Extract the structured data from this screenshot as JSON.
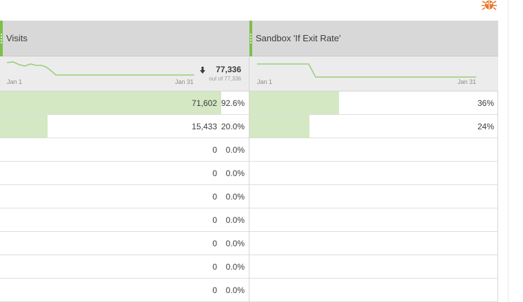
{
  "colors": {
    "accent": "#7cbf4a",
    "bar": "#d3e8c3",
    "header": "#d8d8d8",
    "summary": "#ececec",
    "bug": "#e8772e"
  },
  "icons": {
    "top_right": "bug-icon",
    "total": "down-arrow-icon"
  },
  "columns": [
    {
      "title": "Visits",
      "trend_start": "Jan 1",
      "trend_end": "Jan 31",
      "total": "77,336",
      "total_sub": "out of 77,336"
    },
    {
      "title": "Sandbox 'If Exit Rate'",
      "trend_start": "Jan 1",
      "trend_end": "Jan 31"
    }
  ],
  "rows": [
    {
      "visits": "71,602",
      "visits_pct": "92.6%",
      "visits_fraction": 0.926,
      "exit_rate": "36%",
      "exit_fraction": 0.36
    },
    {
      "visits": "15,433",
      "visits_pct": "20.0%",
      "visits_fraction": 0.2,
      "exit_rate": "24%",
      "exit_fraction": 0.24
    },
    {
      "visits": "0",
      "visits_pct": "0.0%",
      "visits_fraction": 0,
      "exit_rate": "",
      "exit_fraction": 0
    },
    {
      "visits": "0",
      "visits_pct": "0.0%",
      "visits_fraction": 0,
      "exit_rate": "",
      "exit_fraction": 0
    },
    {
      "visits": "0",
      "visits_pct": "0.0%",
      "visits_fraction": 0,
      "exit_rate": "",
      "exit_fraction": 0
    },
    {
      "visits": "0",
      "visits_pct": "0.0%",
      "visits_fraction": 0,
      "exit_rate": "",
      "exit_fraction": 0
    },
    {
      "visits": "0",
      "visits_pct": "0.0%",
      "visits_fraction": 0,
      "exit_rate": "",
      "exit_fraction": 0
    },
    {
      "visits": "0",
      "visits_pct": "0.0%",
      "visits_fraction": 0,
      "exit_rate": "",
      "exit_fraction": 0
    },
    {
      "visits": "0",
      "visits_pct": "0.0%",
      "visits_fraction": 0,
      "exit_rate": "",
      "exit_fraction": 0
    }
  ]
}
